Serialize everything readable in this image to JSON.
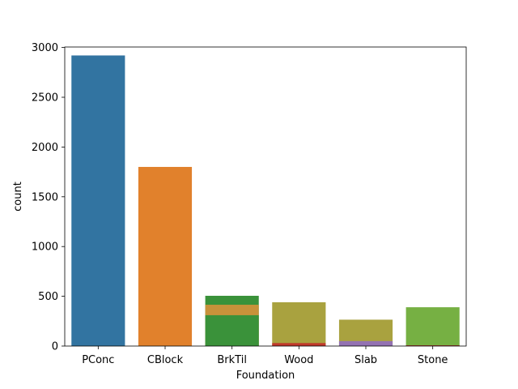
{
  "chart_data": {
    "type": "bar",
    "title": "",
    "xlabel": "Foundation",
    "ylabel": "count",
    "ylim": [
      0,
      3000
    ],
    "yticks": [
      0,
      500,
      1000,
      1500,
      2000,
      2500,
      3000
    ],
    "grid": false,
    "categories": [
      "PConc",
      "CBlock",
      "BrkTil",
      "Wood",
      "Slab",
      "Stone"
    ],
    "bars": [
      {
        "category": "PConc",
        "base": 0,
        "value": 2920,
        "color": "#3274a1"
      },
      {
        "category": "CBlock",
        "base": 0,
        "value": 1800,
        "color": "#e1812c"
      },
      {
        "category": "BrkTil",
        "base": 0,
        "value": 505,
        "color": "#3a923a"
      },
      {
        "category": "BrkTil",
        "base": 0,
        "value": 415,
        "color": "#c8923a"
      },
      {
        "category": "BrkTil",
        "base": 0,
        "value": 310,
        "color": "#3a923a"
      },
      {
        "category": "Wood",
        "base": 0,
        "value": 440,
        "color": "#a9a23f"
      },
      {
        "category": "Wood",
        "base": 0,
        "value": 30,
        "color": "#c0392b"
      },
      {
        "category": "Slab",
        "base": 0,
        "value": 265,
        "color": "#a9a23f"
      },
      {
        "category": "Slab",
        "base": 0,
        "value": 50,
        "color": "#9372b2"
      },
      {
        "category": "Stone",
        "base": 0,
        "value": 390,
        "color": "#76b043"
      },
      {
        "category": "Stone",
        "base": 0,
        "value": 8,
        "color": "#a84032"
      }
    ]
  }
}
